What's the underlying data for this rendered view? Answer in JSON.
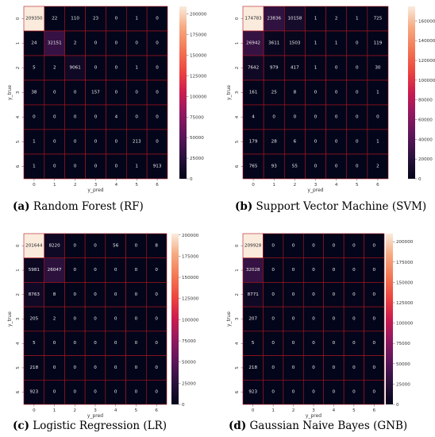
{
  "figure": {
    "panels": [
      {
        "caption_letter": "(a)",
        "caption_text": "Random Forest (RF)"
      },
      {
        "caption_letter": "(b)",
        "caption_text": "Support Vector Machine (SVM)"
      },
      {
        "caption_letter": "(c)",
        "caption_text": "Logistic Regression (LR)"
      },
      {
        "caption_letter": "(d)",
        "caption_text": "Gaussian Naive Bayes (GNB)"
      }
    ]
  },
  "chart_data": [
    {
      "type": "heatmap",
      "title": "",
      "xlabel": "y_pred",
      "ylabel": "y_true",
      "x_ticks": [
        "0",
        "1",
        "2",
        "3",
        "4",
        "5",
        "6"
      ],
      "y_ticks": [
        "0",
        "1",
        "2",
        "3",
        "4",
        "5",
        "6"
      ],
      "values": [
        [
          209350,
          22,
          110,
          23,
          0,
          1,
          0
        ],
        [
          24,
          32151,
          2,
          0,
          0,
          0,
          0
        ],
        [
          5,
          2,
          9061,
          0,
          0,
          1,
          0
        ],
        [
          38,
          0,
          0,
          157,
          0,
          0,
          0
        ],
        [
          0,
          0,
          0,
          0,
          4,
          0,
          0
        ],
        [
          1,
          0,
          0,
          0,
          0,
          213,
          0
        ],
        [
          1,
          0,
          0,
          0,
          0,
          1,
          913
        ]
      ],
      "colorbar_ticks": [
        0,
        25000,
        50000,
        75000,
        100000,
        125000,
        150000,
        175000,
        200000
      ],
      "vmax": 209350,
      "colormap": "rocket",
      "gridlines_color": "#b0171f"
    },
    {
      "type": "heatmap",
      "title": "",
      "xlabel": "y_pred",
      "ylabel": "y_true",
      "x_ticks": [
        "0",
        "1",
        "2",
        "3",
        "4",
        "5",
        "6"
      ],
      "y_ticks": [
        "0",
        "1",
        "2",
        "3",
        "4",
        "5",
        "6"
      ],
      "values": [
        [
          174783,
          23836,
          10158,
          1,
          2,
          1,
          725
        ],
        [
          26942,
          3611,
          1503,
          1,
          1,
          0,
          119
        ],
        [
          7642,
          979,
          417,
          1,
          0,
          0,
          30
        ],
        [
          161,
          25,
          8,
          0,
          0,
          0,
          1
        ],
        [
          4,
          0,
          0,
          0,
          0,
          0,
          0
        ],
        [
          179,
          28,
          6,
          0,
          0,
          0,
          1
        ],
        [
          765,
          93,
          55,
          0,
          0,
          0,
          2
        ]
      ],
      "colorbar_ticks": [
        0,
        20000,
        40000,
        60000,
        80000,
        100000,
        120000,
        140000,
        160000
      ],
      "vmax": 174783,
      "colormap": "rocket",
      "gridlines_color": "#b0171f"
    },
    {
      "type": "heatmap",
      "title": "",
      "xlabel": "y_pred",
      "ylabel": "y_true",
      "x_ticks": [
        "0",
        "1",
        "2",
        "3",
        "4",
        "5",
        "6"
      ],
      "y_ticks": [
        "0",
        "1",
        "2",
        "3",
        "4",
        "5",
        "6"
      ],
      "values": [
        [
          201644,
          8220,
          0,
          0,
          56,
          0,
          8
        ],
        [
          5981,
          26047,
          0,
          0,
          0,
          0,
          0
        ],
        [
          8763,
          8,
          0,
          0,
          0,
          0,
          0
        ],
        [
          205,
          2,
          0,
          0,
          0,
          0,
          0
        ],
        [
          5,
          0,
          0,
          0,
          0,
          0,
          0
        ],
        [
          218,
          0,
          0,
          0,
          0,
          0,
          0
        ],
        [
          923,
          0,
          0,
          0,
          0,
          0,
          0
        ]
      ],
      "colorbar_ticks": [
        0,
        25000,
        50000,
        75000,
        100000,
        125000,
        150000,
        175000,
        200000
      ],
      "vmax": 201644,
      "colormap": "rocket",
      "gridlines_color": "#b0171f"
    },
    {
      "type": "heatmap",
      "title": "",
      "xlabel": "y_pred",
      "ylabel": "y_true",
      "x_ticks": [
        "0",
        "1",
        "2",
        "3",
        "4",
        "5",
        "6"
      ],
      "y_ticks": [
        "0",
        "1",
        "2",
        "3",
        "4",
        "5",
        "6"
      ],
      "values": [
        [
          209928,
          0,
          0,
          0,
          0,
          0,
          0
        ],
        [
          32028,
          0,
          0,
          0,
          0,
          0,
          0
        ],
        [
          8771,
          0,
          0,
          0,
          0,
          0,
          0
        ],
        [
          207,
          0,
          0,
          0,
          0,
          0,
          0
        ],
        [
          5,
          0,
          0,
          0,
          0,
          0,
          0
        ],
        [
          218,
          0,
          0,
          0,
          0,
          0,
          0
        ],
        [
          923,
          0,
          0,
          0,
          0,
          0,
          0
        ]
      ],
      "colorbar_ticks": [
        0,
        25000,
        50000,
        75000,
        100000,
        125000,
        150000,
        175000,
        200000
      ],
      "vmax": 209928,
      "colormap": "rocket",
      "gridlines_color": "#b0171f"
    }
  ]
}
